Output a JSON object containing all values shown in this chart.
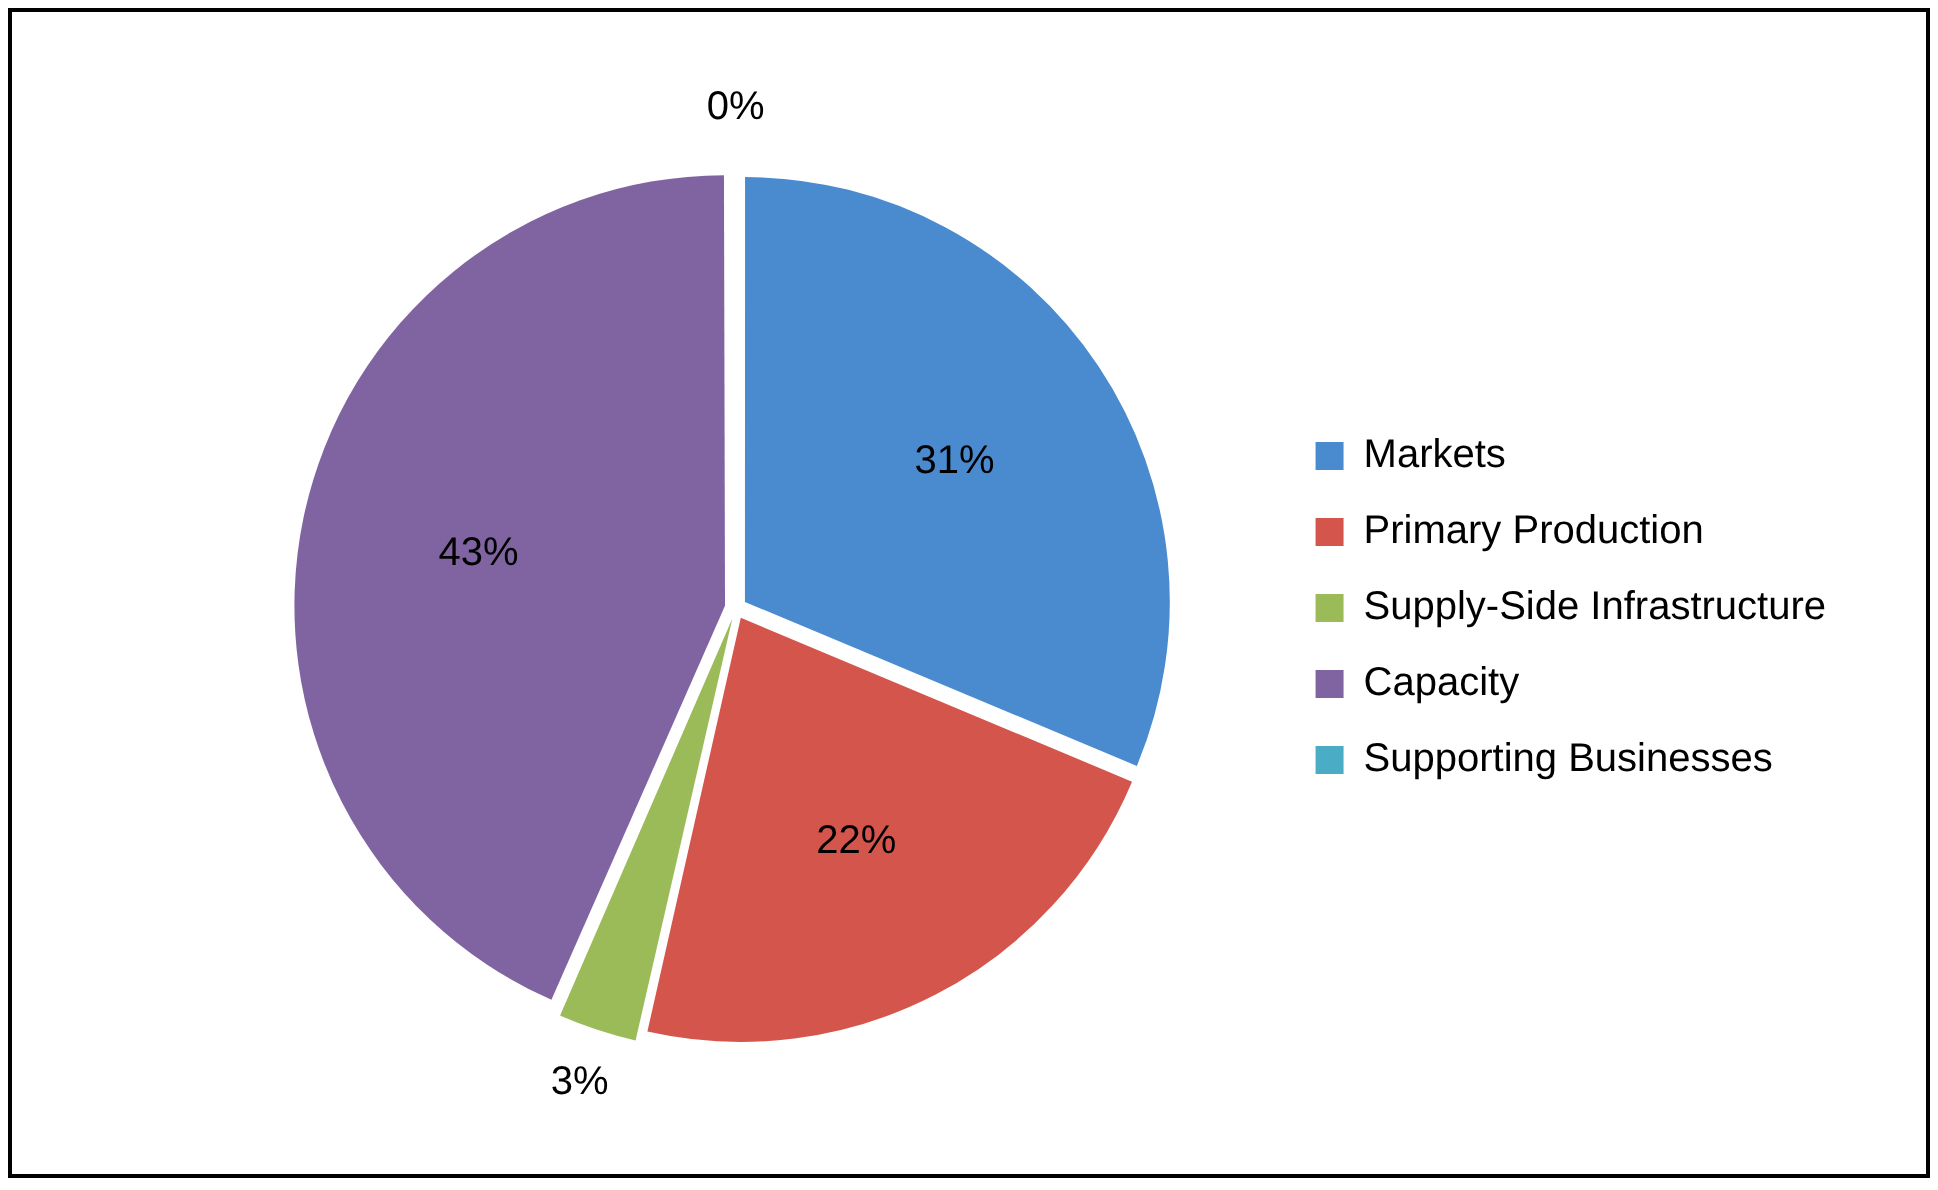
{
  "chart_data": {
    "type": "pie",
    "categories": [
      "Markets",
      "Primary Production",
      "Supply-Side Infrastructure",
      "Capacity",
      "Supporting Businesses"
    ],
    "values": [
      31,
      22,
      3,
      43,
      0
    ],
    "colors": [
      "#4a8bd0",
      "#d4554c",
      "#9bbb59",
      "#8064a2",
      "#4bacc6"
    ],
    "value_labels": [
      "31%",
      "22%",
      "3%",
      "43%",
      "0%"
    ],
    "legend": "right"
  }
}
